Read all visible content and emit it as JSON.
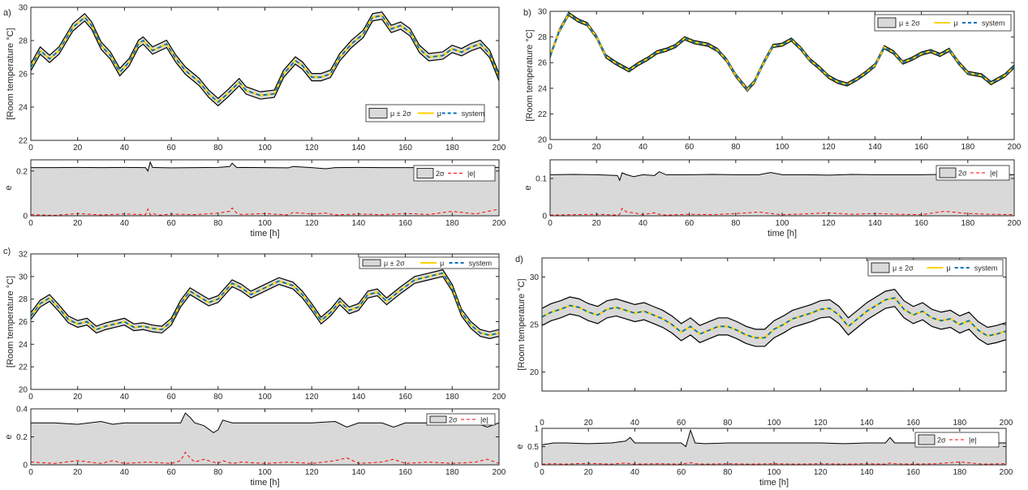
{
  "colors": {
    "band_fill": "#d9d9d9",
    "band_edge": "#000000",
    "mean": "#ffd200",
    "system": "#0072bd",
    "error": "#ff0000",
    "axes": "#262626"
  },
  "legend_labels": {
    "band": "μ ± 2σ",
    "mean": "μ",
    "system": "system",
    "band_err": "2σ",
    "abs_err": "|e|"
  },
  "chart_data": [
    {
      "panel_label": "a)",
      "type": "area",
      "xlabel": "",
      "ylabel": "[Room temperature °C]",
      "xlim": [
        0,
        200
      ],
      "ylim": [
        22,
        30
      ],
      "xticks": [
        0,
        20,
        40,
        60,
        80,
        100,
        120,
        140,
        160,
        180,
        200
      ],
      "yticks": [
        22,
        24,
        26,
        28,
        30
      ],
      "band_halfwidth": 0.22,
      "legend": "lower-right",
      "x": [
        0,
        4,
        8,
        12,
        18,
        23,
        26,
        30,
        34,
        38,
        42,
        46,
        48,
        52,
        58,
        62,
        66,
        72,
        76,
        80,
        84,
        89,
        92,
        98,
        104,
        108,
        113,
        116,
        120,
        124,
        128,
        132,
        137,
        142,
        146,
        150,
        154,
        158,
        162,
        166,
        170,
        176,
        180,
        184,
        188,
        192,
        196,
        200
      ],
      "mean": [
        26.4,
        27.4,
        26.9,
        27.4,
        28.8,
        29.4,
        28.9,
        27.7,
        27.1,
        26.1,
        26.7,
        27.8,
        28.0,
        27.4,
        27.8,
        26.9,
        26.2,
        25.5,
        24.8,
        24.3,
        24.8,
        25.5,
        25.0,
        24.7,
        24.8,
        26.0,
        26.8,
        26.5,
        25.8,
        25.8,
        26.0,
        27.0,
        27.8,
        28.4,
        29.4,
        29.5,
        28.7,
        28.9,
        28.5,
        27.5,
        27.0,
        27.1,
        27.5,
        27.3,
        27.6,
        27.8,
        27.2,
        25.8
      ]
    },
    {
      "panel_label": "",
      "type": "area",
      "xlabel": "time [h]",
      "ylabel": "e",
      "xlim": [
        0,
        200
      ],
      "ylim": [
        0,
        0.25
      ],
      "xticks": [
        0,
        20,
        40,
        60,
        80,
        100,
        120,
        140,
        160,
        180,
        200
      ],
      "yticks": [
        0,
        0.2
      ],
      "legend": "top-right",
      "x": [
        0,
        10,
        20,
        30,
        40,
        49,
        50,
        51,
        52,
        55,
        60,
        70,
        80,
        85,
        86,
        88,
        90,
        100,
        110,
        112,
        120,
        126,
        130,
        140,
        150,
        160,
        170,
        180,
        190,
        200
      ],
      "band": [
        0.215,
        0.215,
        0.216,
        0.215,
        0.216,
        0.215,
        0.2,
        0.24,
        0.216,
        0.215,
        0.214,
        0.215,
        0.216,
        0.22,
        0.235,
        0.215,
        0.216,
        0.215,
        0.214,
        0.22,
        0.215,
        0.21,
        0.215,
        0.216,
        0.215,
        0.215,
        0.216,
        0.215,
        0.215,
        0.216
      ],
      "abs_err": [
        0.005,
        0.002,
        0.01,
        0.004,
        0.008,
        0.005,
        0.03,
        0.004,
        0.01,
        0.003,
        0.008,
        0.005,
        0.012,
        0.02,
        0.035,
        0.012,
        0.006,
        0.01,
        0.004,
        0.015,
        0.008,
        0.012,
        0.004,
        0.008,
        0.005,
        0.01,
        0.006,
        0.02,
        0.008,
        0.03
      ]
    },
    {
      "panel_label": "b)",
      "type": "area",
      "xlabel": "",
      "ylabel": "[Room temperature °C]",
      "xlim": [
        0,
        200
      ],
      "ylim": [
        20,
        30
      ],
      "xticks": [
        0,
        20,
        40,
        60,
        80,
        100,
        120,
        140,
        160,
        180,
        200
      ],
      "yticks": [
        20,
        22,
        24,
        26,
        28,
        30
      ],
      "band_halfwidth": 0.12,
      "legend": "top-right",
      "x": [
        0,
        4,
        8,
        12,
        16,
        20,
        24,
        28,
        34,
        38,
        42,
        46,
        50,
        54,
        58,
        62,
        68,
        72,
        76,
        80,
        85,
        88,
        92,
        96,
        100,
        104,
        108,
        112,
        116,
        120,
        124,
        128,
        132,
        136,
        140,
        144,
        148,
        152,
        156,
        160,
        164,
        168,
        172,
        176,
        180,
        186,
        190,
        196,
        200
      ],
      "mean": [
        26.5,
        28.5,
        29.8,
        29.3,
        29.0,
        28.0,
        26.5,
        26.0,
        25.4,
        25.9,
        26.3,
        26.8,
        27.0,
        27.3,
        27.9,
        27.6,
        27.4,
        27.0,
        26.2,
        25.0,
        23.9,
        24.5,
        26.0,
        27.3,
        27.4,
        27.8,
        27.1,
        26.2,
        25.6,
        24.9,
        24.5,
        24.3,
        24.7,
        25.2,
        25.8,
        27.2,
        26.8,
        26.0,
        26.3,
        26.7,
        26.9,
        26.6,
        27.0,
        26.0,
        25.2,
        25.0,
        24.4,
        25.0,
        25.7
      ]
    },
    {
      "panel_label": "",
      "type": "area",
      "xlabel": "time [h]",
      "ylabel": "e",
      "xlim": [
        0,
        200
      ],
      "ylim": [
        0,
        0.15
      ],
      "xticks": [
        0,
        20,
        40,
        60,
        80,
        100,
        120,
        140,
        160,
        180,
        200
      ],
      "yticks": [
        0,
        0.1
      ],
      "legend": "top-right",
      "x": [
        0,
        10,
        20,
        29,
        30,
        31,
        33,
        36,
        40,
        45,
        47,
        50,
        60,
        70,
        80,
        90,
        95,
        100,
        110,
        120,
        130,
        140,
        150,
        160,
        170,
        180,
        190,
        200
      ],
      "band": [
        0.11,
        0.111,
        0.11,
        0.108,
        0.095,
        0.115,
        0.11,
        0.105,
        0.11,
        0.108,
        0.118,
        0.11,
        0.11,
        0.111,
        0.11,
        0.11,
        0.116,
        0.11,
        0.11,
        0.109,
        0.111,
        0.11,
        0.11,
        0.11,
        0.111,
        0.11,
        0.11,
        0.11
      ],
      "abs_err": [
        0.002,
        0.003,
        0.004,
        0.002,
        0.004,
        0.02,
        0.01,
        0.008,
        0.003,
        0.008,
        0.004,
        0.002,
        0.004,
        0.003,
        0.006,
        0.01,
        0.006,
        0.003,
        0.005,
        0.008,
        0.004,
        0.006,
        0.004,
        0.003,
        0.012,
        0.006,
        0.004,
        0.003
      ]
    },
    {
      "panel_label": "c)",
      "type": "area",
      "xlabel": "",
      "ylabel": "[Room temperature °C]",
      "xlim": [
        0,
        200
      ],
      "ylim": [
        20,
        32
      ],
      "xticks": [
        0,
        20,
        40,
        60,
        80,
        100,
        120,
        140,
        160,
        180,
        200
      ],
      "yticks": [
        20,
        22,
        24,
        26,
        28,
        30,
        32
      ],
      "band_halfwidth": 0.3,
      "legend": "top-right",
      "x": [
        0,
        4,
        8,
        12,
        16,
        20,
        24,
        28,
        32,
        36,
        40,
        44,
        48,
        52,
        56,
        60,
        64,
        68,
        72,
        76,
        80,
        86,
        90,
        94,
        100,
        106,
        112,
        116,
        120,
        124,
        128,
        132,
        136,
        140,
        144,
        148,
        152,
        158,
        164,
        170,
        176,
        180,
        184,
        188,
        192,
        196,
        200
      ],
      "mean": [
        26.5,
        27.6,
        28.1,
        27.2,
        26.2,
        25.8,
        26.0,
        25.3,
        25.6,
        25.8,
        26.0,
        25.5,
        25.6,
        25.4,
        25.3,
        26.0,
        27.6,
        28.7,
        28.2,
        27.7,
        28.0,
        29.4,
        29.0,
        28.4,
        29.0,
        29.6,
        29.2,
        28.4,
        27.3,
        26.1,
        26.8,
        27.8,
        27.0,
        27.3,
        28.4,
        28.6,
        27.8,
        28.8,
        29.7,
        30.0,
        30.3,
        29.0,
        26.8,
        25.7,
        25.0,
        24.8,
        25.0
      ]
    },
    {
      "panel_label": "",
      "type": "area",
      "xlabel": "time [h]",
      "ylabel": "e",
      "xlim": [
        0,
        200
      ],
      "ylim": [
        0,
        0.4
      ],
      "xticks": [
        0,
        20,
        40,
        60,
        80,
        100,
        120,
        140,
        160,
        180,
        200
      ],
      "yticks": [
        0,
        0.2,
        0.4
      ],
      "legend": "top-right",
      "x": [
        0,
        10,
        20,
        30,
        35,
        40,
        50,
        60,
        64,
        66,
        68,
        70,
        74,
        78,
        80,
        82,
        86,
        90,
        100,
        110,
        120,
        130,
        135,
        140,
        150,
        155,
        160,
        170,
        180,
        190,
        195,
        200
      ],
      "band": [
        0.3,
        0.3,
        0.29,
        0.31,
        0.29,
        0.3,
        0.3,
        0.3,
        0.3,
        0.37,
        0.34,
        0.3,
        0.28,
        0.23,
        0.25,
        0.32,
        0.3,
        0.3,
        0.3,
        0.3,
        0.3,
        0.31,
        0.27,
        0.3,
        0.3,
        0.27,
        0.3,
        0.3,
        0.3,
        0.3,
        0.27,
        0.3
      ],
      "abs_err": [
        0.02,
        0.01,
        0.03,
        0.01,
        0.03,
        0.01,
        0.02,
        0.01,
        0.03,
        0.09,
        0.05,
        0.02,
        0.04,
        0.02,
        0.01,
        0.03,
        0.01,
        0.02,
        0.01,
        0.02,
        0.01,
        0.03,
        0.05,
        0.01,
        0.02,
        0.04,
        0.01,
        0.02,
        0.01,
        0.02,
        0.04,
        0.01
      ]
    },
    {
      "panel_label": "d)",
      "type": "area",
      "xlabel": "",
      "ylabel": "[Room temperature °C]",
      "xlim": [
        0,
        200
      ],
      "ylim": [
        18,
        32
      ],
      "xticks": [
        0,
        20,
        40,
        60,
        80,
        100,
        120,
        140,
        160,
        180,
        200
      ],
      "yticks": [
        20,
        25,
        30
      ],
      "band_halfwidth": 0.9,
      "legend": "top-right",
      "x": [
        0,
        4,
        8,
        12,
        16,
        20,
        24,
        28,
        32,
        36,
        40,
        44,
        48,
        52,
        56,
        60,
        64,
        68,
        72,
        76,
        80,
        84,
        88,
        92,
        96,
        100,
        104,
        108,
        112,
        116,
        120,
        124,
        128,
        132,
        136,
        140,
        144,
        148,
        152,
        156,
        160,
        164,
        168,
        172,
        176,
        180,
        184,
        188,
        192,
        196,
        200
      ],
      "mean": [
        25.8,
        26.3,
        26.6,
        27.0,
        26.8,
        26.3,
        26.0,
        26.6,
        26.8,
        26.5,
        26.2,
        26.4,
        26.0,
        25.6,
        25.0,
        24.2,
        24.8,
        24.0,
        24.4,
        24.8,
        24.8,
        24.4,
        23.9,
        23.6,
        23.6,
        24.5,
        25.0,
        25.6,
        25.9,
        26.2,
        26.6,
        26.7,
        26.0,
        24.8,
        25.6,
        26.4,
        27.0,
        27.6,
        27.8,
        26.6,
        26.0,
        26.4,
        25.7,
        25.4,
        25.6,
        25.0,
        25.4,
        24.4,
        23.8,
        24.0,
        24.3
      ]
    },
    {
      "panel_label": "",
      "type": "area",
      "xlabel": "time [h]",
      "ylabel": "e",
      "xlim": [
        0,
        200
      ],
      "ylim": [
        0,
        1
      ],
      "xticks": [
        0,
        20,
        40,
        60,
        80,
        100,
        120,
        140,
        160,
        180,
        200
      ],
      "yticks": [
        0,
        0.5,
        1
      ],
      "legend": "top-right",
      "x": [
        0,
        5,
        10,
        20,
        30,
        36,
        38,
        40,
        50,
        60,
        62,
        64,
        66,
        70,
        80,
        90,
        100,
        110,
        120,
        130,
        140,
        148,
        150,
        152,
        160,
        170,
        180,
        190,
        200
      ],
      "band": [
        0.55,
        0.6,
        0.6,
        0.58,
        0.6,
        0.65,
        0.75,
        0.6,
        0.6,
        0.6,
        0.5,
        0.95,
        0.6,
        0.58,
        0.6,
        0.6,
        0.6,
        0.6,
        0.6,
        0.58,
        0.6,
        0.6,
        0.75,
        0.6,
        0.6,
        0.62,
        0.6,
        0.6,
        0.6
      ],
      "abs_err": [
        0.02,
        0.03,
        0.02,
        0.04,
        0.02,
        0.05,
        0.03,
        0.02,
        0.03,
        0.02,
        0.04,
        0.06,
        0.03,
        0.02,
        0.03,
        0.02,
        0.03,
        0.02,
        0.03,
        0.02,
        0.03,
        0.02,
        0.05,
        0.03,
        0.02,
        0.03,
        0.08,
        0.02,
        0.03
      ]
    }
  ]
}
